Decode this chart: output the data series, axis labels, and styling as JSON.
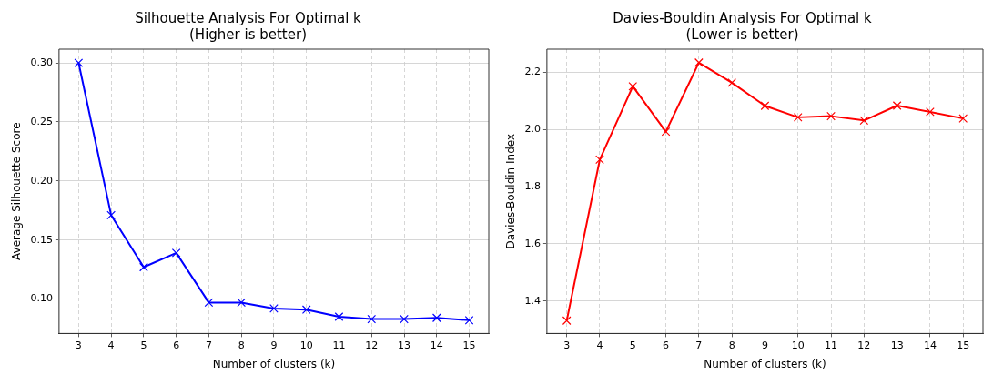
{
  "chart_data": [
    {
      "type": "line",
      "title": "Silhouette Analysis For Optimal k",
      "subtitle": "(Higher is better)",
      "xlabel": "Number of clusters (k)",
      "ylabel": "Average Silhouette Score",
      "x": [
        3,
        4,
        5,
        6,
        7,
        8,
        9,
        10,
        11,
        12,
        13,
        14,
        15
      ],
      "series": [
        {
          "color": "#0000ff",
          "values": [
            0.3,
            0.171,
            0.127,
            0.139,
            0.097,
            0.097,
            0.092,
            0.091,
            0.085,
            0.083,
            0.083,
            0.084,
            0.082
          ]
        }
      ],
      "xlim": [
        2.4,
        15.6
      ],
      "xticks": [
        3,
        4,
        5,
        6,
        7,
        8,
        9,
        10,
        11,
        12,
        13,
        14,
        15
      ],
      "ylim": [
        0.0708,
        0.3116
      ],
      "yticks": [
        {
          "value": 0.1,
          "label": "0.10"
        },
        {
          "value": 0.15,
          "label": "0.15"
        },
        {
          "value": 0.2,
          "label": "0.20"
        },
        {
          "value": 0.25,
          "label": "0.25"
        },
        {
          "value": 0.3,
          "label": "0.30"
        }
      ],
      "grid": true,
      "marker": "cross",
      "line_style": "solid"
    },
    {
      "type": "line",
      "title": "Davies-Bouldin Analysis For Optimal k",
      "subtitle": "(Lower is better)",
      "xlabel": "Number of clusters (k)",
      "ylabel": "Davies-Bouldin Index",
      "x": [
        3,
        4,
        5,
        6,
        7,
        8,
        9,
        10,
        11,
        12,
        13,
        14,
        15
      ],
      "series": [
        {
          "color": "#ff0000",
          "values": [
            1.332,
            1.894,
            2.15,
            1.992,
            2.233,
            2.163,
            2.082,
            2.042,
            2.046,
            2.031,
            2.083,
            2.061,
            2.038
          ]
        }
      ],
      "xlim": [
        2.4,
        15.6
      ],
      "xticks": [
        3,
        4,
        5,
        6,
        7,
        8,
        9,
        10,
        11,
        12,
        13,
        14,
        15
      ],
      "ylim": [
        1.287,
        2.28
      ],
      "yticks": [
        1.4,
        1.6,
        1.8,
        {
          "value": 2.0,
          "label": "2.0"
        },
        2.2
      ],
      "grid": true,
      "marker": "cross",
      "line_style": "solid"
    }
  ]
}
